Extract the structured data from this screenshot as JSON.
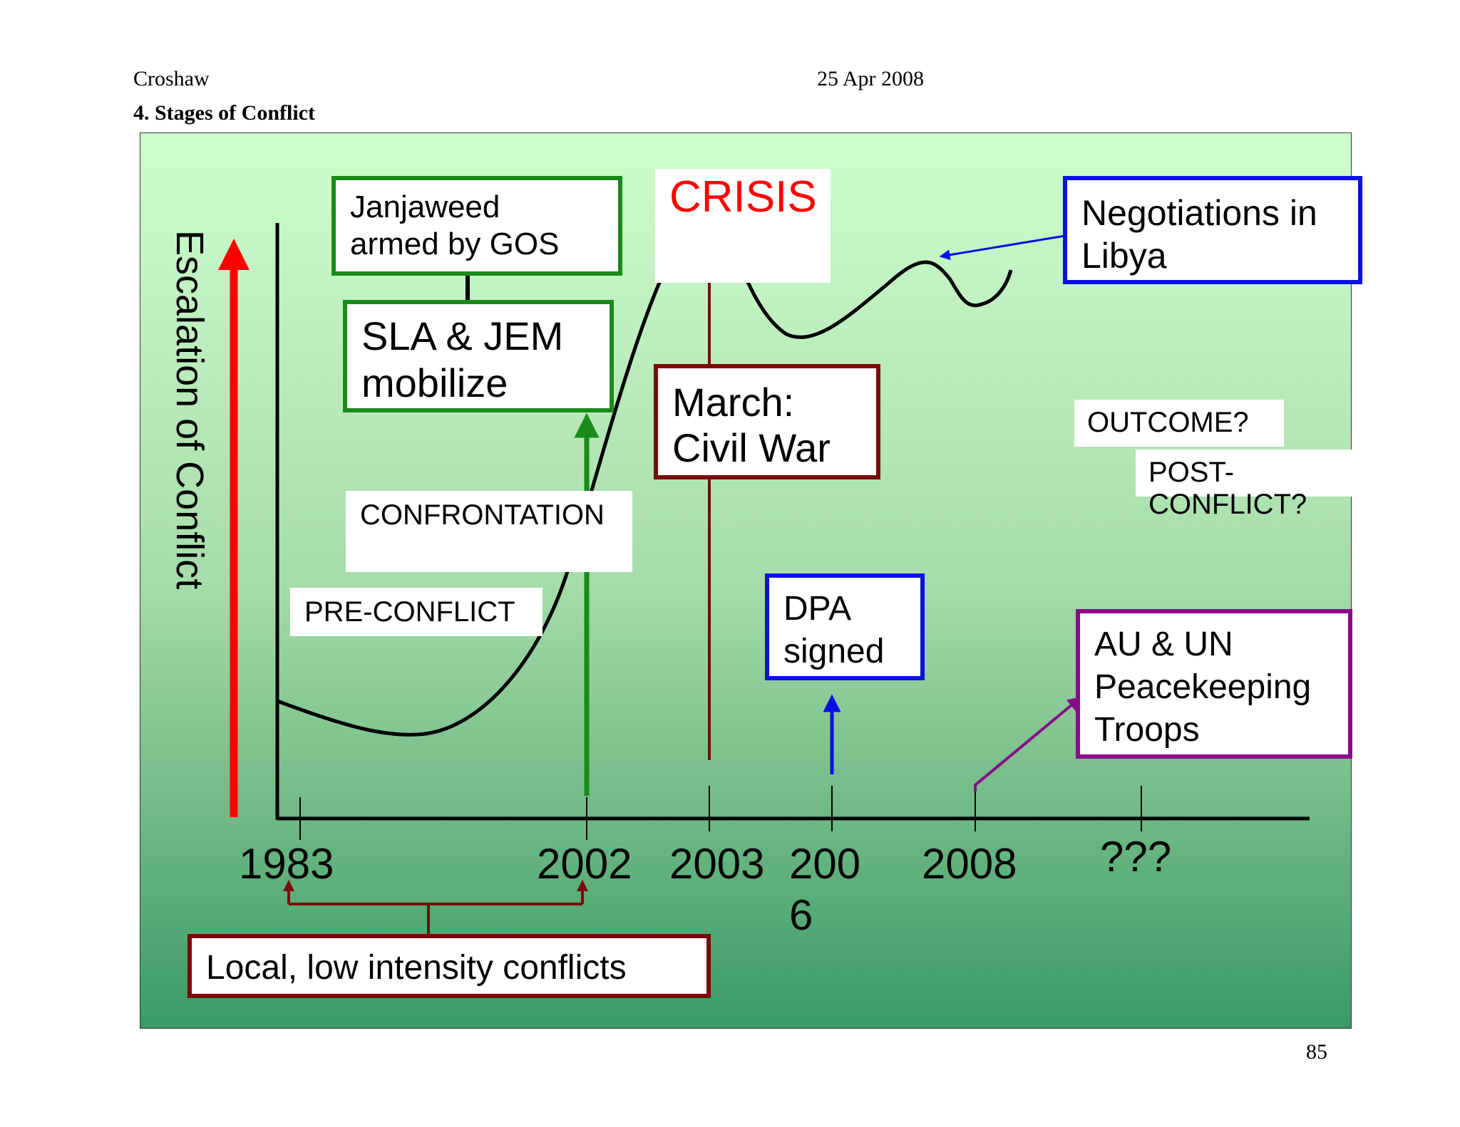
{
  "header": {
    "author": "Croshaw",
    "date": "25 Apr 2008",
    "title": "4. Stages of Conflict"
  },
  "footer": {
    "page_number": "85"
  },
  "diagram": {
    "y_axis_label": "Escalation of Conflict",
    "x_ticks": [
      "1983",
      "2002",
      "2003",
      "200\n6",
      "2008",
      "???"
    ],
    "stage_labels": {
      "pre_conflict": "PRE-CONFLICT",
      "confrontation": "CONFRONTATION",
      "crisis": "CRISIS",
      "outcome": "OUTCOME?",
      "post_conflict": "POST-CONFLICT?"
    },
    "event_boxes": {
      "janjaweed": "Janjaweed\narmed by GOS",
      "sla_jem": "SLA & JEM\nmobilize",
      "civil_war": "March:\nCivil War",
      "negotiations": "Negotiations in\nLibya",
      "dpa": "DPA\nsigned",
      "peacekeeping": "AU & UN\nPeacekeeping\nTroops",
      "local_conflicts": "Local, low intensity conflicts"
    },
    "colors": {
      "escalation_arrow": "#ff0000",
      "crisis_text": "#ff0000",
      "green_border": "#1a8a1a",
      "maroon_border": "#7a0a0a",
      "blue_border": "#0a10e6",
      "purple_border": "#8a0a8a"
    }
  }
}
